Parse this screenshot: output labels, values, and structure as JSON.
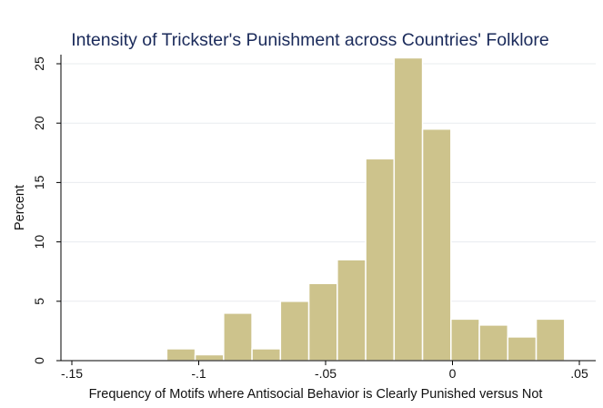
{
  "chart_data": {
    "type": "bar",
    "title": "Intensity of Trickster's Punishment across Countries' Folklore",
    "xlabel": "Frequency of Motifs where Antisocial Behavior is Clearly Punished versus Not",
    "ylabel": "Percent",
    "xlim": [
      -0.15,
      0.05
    ],
    "ylim": [
      0,
      25
    ],
    "x_ticks": [
      {
        "value": -0.15,
        "label": "-.15"
      },
      {
        "value": -0.1,
        "label": "-.1"
      },
      {
        "value": -0.05,
        "label": "-.05"
      },
      {
        "value": 0,
        "label": "0"
      },
      {
        "value": 0.05,
        "label": ".05"
      }
    ],
    "y_ticks": [
      {
        "value": 0,
        "label": "0"
      },
      {
        "value": 5,
        "label": "5"
      },
      {
        "value": 10,
        "label": "10"
      },
      {
        "value": 15,
        "label": "15"
      },
      {
        "value": 20,
        "label": "20"
      },
      {
        "value": 25,
        "label": "25"
      }
    ],
    "grid": true,
    "bin_width": 0.0112,
    "bins": [
      {
        "start": -0.1126,
        "percent": 1.0
      },
      {
        "start": -0.1014,
        "percent": 0.5
      },
      {
        "start": -0.0902,
        "percent": 4.0
      },
      {
        "start": -0.079,
        "percent": 1.0
      },
      {
        "start": -0.0678,
        "percent": 5.0
      },
      {
        "start": -0.0566,
        "percent": 6.5
      },
      {
        "start": -0.0454,
        "percent": 8.5
      },
      {
        "start": -0.0342,
        "percent": 17.0
      },
      {
        "start": -0.023,
        "percent": 25.5
      },
      {
        "start": -0.0118,
        "percent": 19.5
      },
      {
        "start": -0.0006,
        "percent": 3.5
      },
      {
        "start": 0.0106,
        "percent": 3.0
      },
      {
        "start": 0.0218,
        "percent": 2.0
      },
      {
        "start": 0.033,
        "percent": 3.5
      }
    ],
    "colors": {
      "bar_fill": "#cdc38c",
      "bar_stroke": "#ffffff",
      "grid": "#e8ecef",
      "title": "#1a2a5a"
    }
  }
}
